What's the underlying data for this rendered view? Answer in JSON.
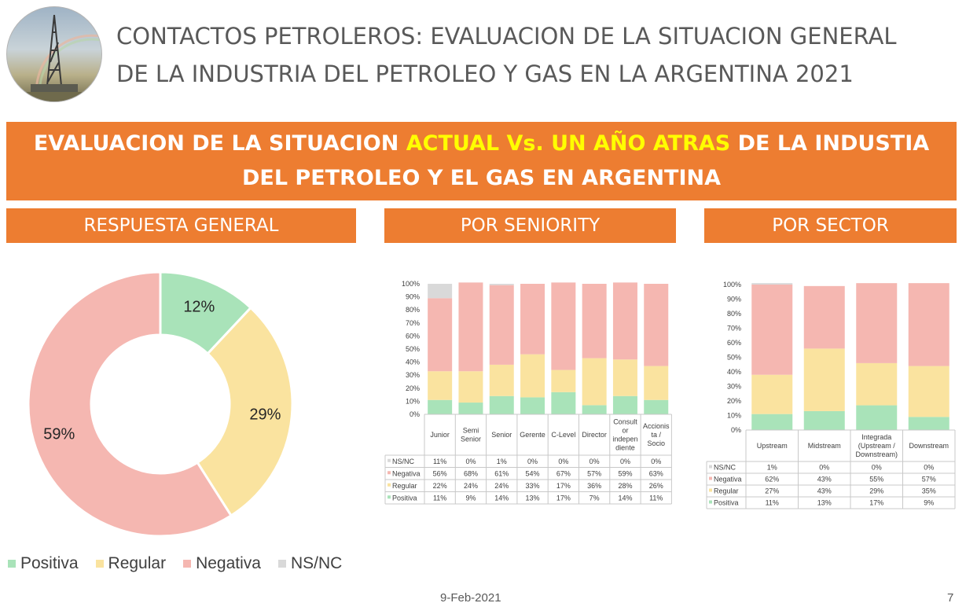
{
  "header": {
    "title_line1": "CONTACTOS PETROLEROS: EVALUACION DE LA SITUACION GENERAL",
    "title_line2": "DE LA INDUSTRIA DEL PETROLEO Y GAS EN LA ARGENTINA 2021"
  },
  "banner": {
    "part1": "EVALUACION DE LA SITUACION ",
    "highlight": "ACTUAL Vs. UN AÑO ATRAS",
    "part2": " DE LA INDUSTIA",
    "line2": "DEL PETROLEO Y EL GAS EN ARGENTINA"
  },
  "sections": {
    "general": "RESPUESTA GENERAL",
    "seniority": "POR SENIORITY",
    "sector": "POR SECTOR"
  },
  "colors": {
    "Positiva": "#a9e3b9",
    "Regular": "#fae39f",
    "Negativa": "#f5b7b1",
    "NS/NC": "#d9d9d9",
    "positiva_table": "#fef8e0",
    "accent": "#ed7d31",
    "highlight": "#ffff00"
  },
  "footer": {
    "date": "9-Feb-2021",
    "page": "7"
  },
  "chart_data": [
    {
      "type": "pie",
      "variant": "donut",
      "legend_position": "bottom",
      "slices": [
        {
          "name": "Positiva",
          "value": 12,
          "label": "12%"
        },
        {
          "name": "Regular",
          "value": 29,
          "label": "29%"
        },
        {
          "name": "Negativa",
          "value": 59,
          "label": "59%"
        },
        {
          "name": "NS/NC",
          "value": 0,
          "label": ""
        }
      ]
    },
    {
      "type": "bar",
      "stacked": true,
      "percent": true,
      "ylim": [
        0,
        100
      ],
      "yticks": [
        "0%",
        "10%",
        "20%",
        "30%",
        "40%",
        "50%",
        "60%",
        "70%",
        "80%",
        "90%",
        "100%"
      ],
      "categories": [
        "Junior",
        "Semi Senior",
        "Senior",
        "Gerente",
        "C-Level",
        "Director",
        "Consultor independiente",
        "Accionista / Socio"
      ],
      "category_lines": [
        [
          "Junior"
        ],
        [
          "Semi",
          "Senior"
        ],
        [
          "Senior"
        ],
        [
          "Gerente"
        ],
        [
          "C-Level"
        ],
        [
          "Director"
        ],
        [
          "Consult",
          "or",
          "indepen",
          "diente"
        ],
        [
          "Accionis",
          "ta /",
          "Socio"
        ]
      ],
      "series": [
        {
          "name": "NS/NC",
          "values": [
            11,
            0,
            1,
            0,
            0,
            0,
            0,
            0
          ]
        },
        {
          "name": "Negativa",
          "values": [
            56,
            68,
            61,
            54,
            67,
            57,
            59,
            63
          ]
        },
        {
          "name": "Regular",
          "values": [
            22,
            24,
            24,
            33,
            17,
            36,
            28,
            26
          ]
        },
        {
          "name": "Positiva",
          "values": [
            11,
            9,
            14,
            13,
            17,
            7,
            14,
            11
          ]
        }
      ],
      "table_labels": [
        [
          "11%",
          "0%",
          "1%",
          "0%",
          "0%",
          "0%",
          "0%",
          "0%"
        ],
        [
          "56%",
          "68%",
          "61%",
          "54%",
          "67%",
          "57%",
          "59%",
          "63%"
        ],
        [
          "22%",
          "24%",
          "24%",
          "33%",
          "17%",
          "36%",
          "28%",
          "26%"
        ],
        [
          "11%",
          "9%",
          "14%",
          "13%",
          "17%",
          "7%",
          "14%",
          "11%"
        ]
      ]
    },
    {
      "type": "bar",
      "stacked": true,
      "percent": true,
      "ylim": [
        0,
        100
      ],
      "yticks": [
        "0%",
        "10%",
        "20%",
        "30%",
        "40%",
        "50%",
        "60%",
        "70%",
        "80%",
        "90%",
        "100%"
      ],
      "categories": [
        "Upstream",
        "Midstream",
        "Integrada (Upstream / Downstream)",
        "Downstream"
      ],
      "category_lines": [
        [
          "Upstream"
        ],
        [
          "Midstream"
        ],
        [
          "Integrada",
          "(Upstream /",
          "Downstream)"
        ],
        [
          "Downstream"
        ]
      ],
      "series": [
        {
          "name": "NS/NC",
          "values": [
            1,
            0,
            0,
            0
          ]
        },
        {
          "name": "Negativa",
          "values": [
            62,
            43,
            55,
            57
          ]
        },
        {
          "name": "Regular",
          "values": [
            27,
            43,
            29,
            35
          ]
        },
        {
          "name": "Positiva",
          "values": [
            11,
            13,
            17,
            9
          ]
        }
      ],
      "table_labels": [
        [
          "1%",
          "0%",
          "0%",
          "0%"
        ],
        [
          "62%",
          "43%",
          "55%",
          "57%"
        ],
        [
          "27%",
          "43%",
          "29%",
          "35%"
        ],
        [
          "11%",
          "13%",
          "17%",
          "9%"
        ]
      ]
    }
  ]
}
